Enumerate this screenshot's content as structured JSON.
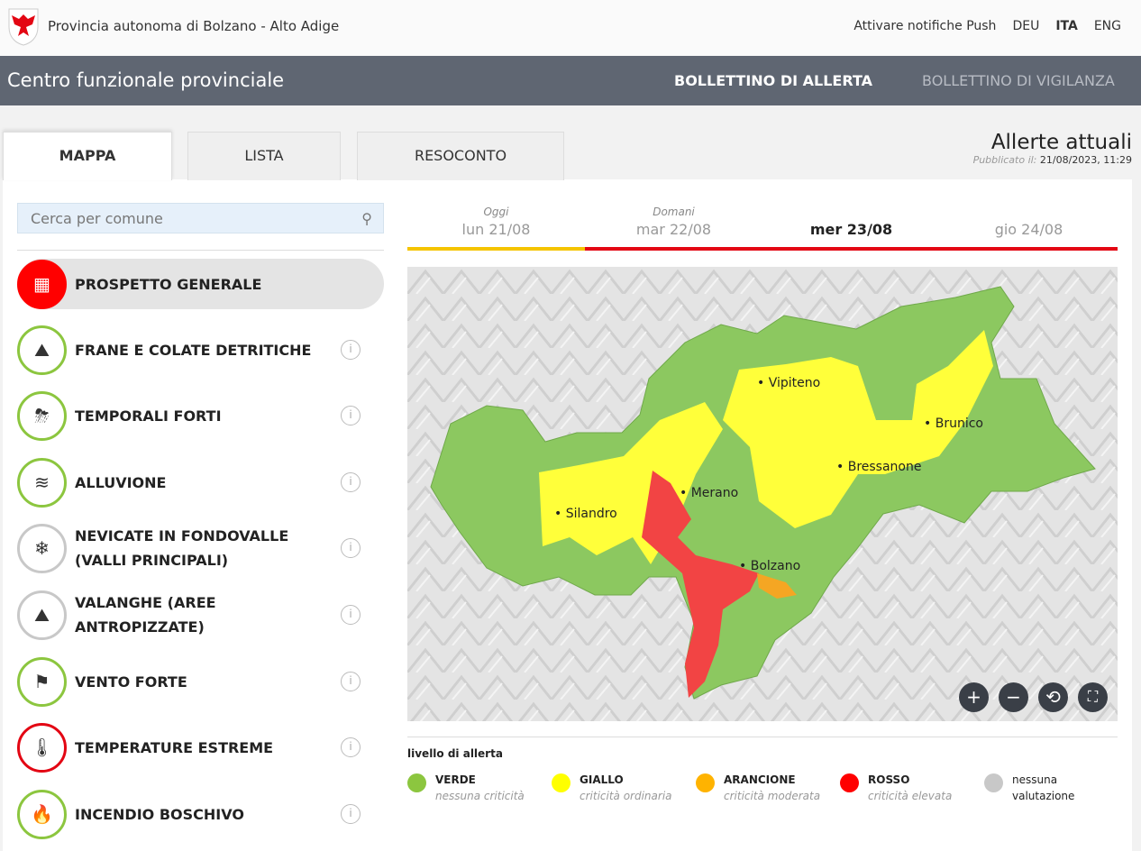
{
  "topbar": {
    "org": "Provincia autonoma di Bolzano - Alto Adige",
    "push": "Attivare notifiche Push",
    "langs": [
      "DEU",
      "ITA",
      "ENG"
    ],
    "active_lang": "ITA"
  },
  "navbar": {
    "title": "Centro funzionale provinciale",
    "bulletin_alert": "BOLLETTINO DI ALLERTA",
    "bulletin_watch": "BOLLETTINO DI VIGILANZA"
  },
  "tabs": [
    "MAPPA",
    "LISTA",
    "RESOCONTO"
  ],
  "header": {
    "title": "Allerte attuali",
    "published_label": "Pubblicato il:",
    "published": "21/08/2023, 11:29"
  },
  "search": {
    "placeholder": "Cerca per comune"
  },
  "categories": [
    {
      "label": "PROSPETTO GENERALE",
      "icon": "grid-icon",
      "level": "selected"
    },
    {
      "label": "FRANE E COLATE DETRITICHE",
      "icon": "landslide-icon",
      "color": "#8cc63f"
    },
    {
      "label": "TEMPORALI FORTI",
      "icon": "thunderstorm-icon",
      "color": "#8cc63f"
    },
    {
      "label": "ALLUVIONE",
      "icon": "waves-icon",
      "color": "#8cc63f"
    },
    {
      "label": "NEVICATE IN FONDOVALLE (VALLI PRINCIPALI)",
      "icon": "snow-cloud-icon",
      "color": "#c8c8c8"
    },
    {
      "label": "VALANGHE (AREE ANTROPIZZATE)",
      "icon": "avalanche-icon",
      "color": "#c8c8c8"
    },
    {
      "label": "VENTO FORTE",
      "icon": "windsock-icon",
      "color": "#8cc63f"
    },
    {
      "label": "TEMPERATURE ESTREME",
      "icon": "thermometer-icon",
      "color": "#e30613"
    },
    {
      "label": "INCENDIO BOSCHIVO",
      "icon": "fire-icon",
      "color": "#8cc63f"
    }
  ],
  "days": [
    {
      "sub": "Oggi",
      "date": "lun 21/08",
      "color": "#f5c400"
    },
    {
      "sub": "Domani",
      "date": "mar 22/08",
      "color": "#e30613"
    },
    {
      "sub": "",
      "date": "mer 23/08",
      "color": "#e30613",
      "active": true
    },
    {
      "sub": "",
      "date": "gio 24/08",
      "color": "#e30613"
    }
  ],
  "map": {
    "towns": [
      "Vipiteno",
      "Brunico",
      "Bressanone",
      "Merano",
      "Silandro",
      "Bolzano"
    ],
    "controls": [
      "+",
      "−",
      "⟲",
      "⛶"
    ]
  },
  "legend": {
    "title": "livello di allerta",
    "items": [
      {
        "name": "VERDE",
        "desc": "nessuna criticità",
        "color": "#8cc63f"
      },
      {
        "name": "GIALLO",
        "desc": "criticità ordinaria",
        "color": "#ffff00"
      },
      {
        "name": "ARANCIONE",
        "desc": "criticità moderata",
        "color": "#ffb300"
      },
      {
        "name": "ROSSO",
        "desc": "criticità elevata",
        "color": "#ff0000"
      },
      {
        "name": "nessuna",
        "desc": "valutazione",
        "color": "#c8c8c8"
      }
    ]
  }
}
